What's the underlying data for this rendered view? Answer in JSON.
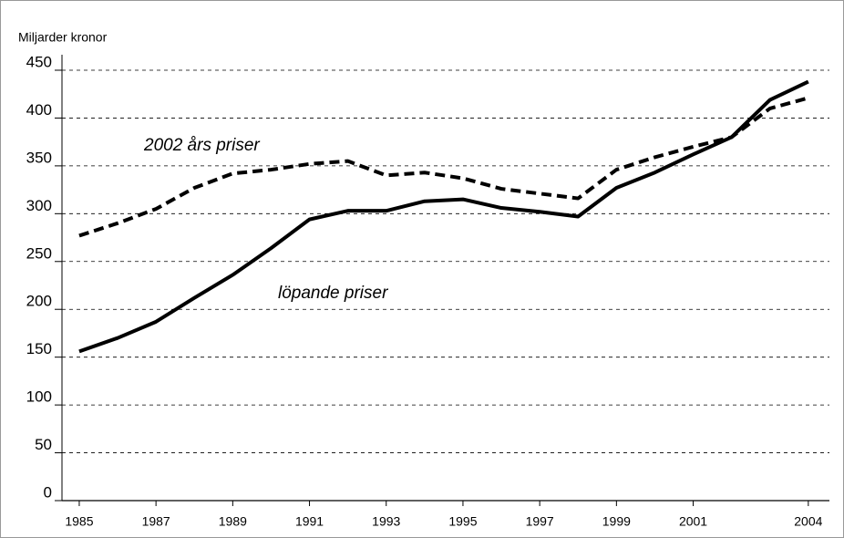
{
  "chart_data": {
    "type": "line",
    "ylabel": "Miljarder kronor",
    "x": [
      1985,
      1986,
      1987,
      1988,
      1989,
      1990,
      1991,
      1992,
      1993,
      1994,
      1995,
      1996,
      1997,
      1998,
      1999,
      2000,
      2001,
      2002,
      2003,
      2004
    ],
    "series": [
      {
        "name": "löpande priser",
        "color": "#000000",
        "dash": false,
        "values": [
          156,
          170,
          187,
          212,
          236,
          264,
          294,
          303,
          303,
          313,
          315,
          306,
          302,
          297,
          327,
          343,
          362,
          380,
          419,
          438
        ]
      },
      {
        "name": "2002 års priser",
        "color": "#000000",
        "dash": true,
        "values": [
          277,
          290,
          305,
          327,
          342,
          346,
          352,
          355,
          340,
          343,
          337,
          326,
          321,
          316,
          346,
          359,
          370,
          380,
          410,
          421
        ]
      }
    ],
    "xlim": [
      1984.55,
      2004.55
    ],
    "xticks": [
      1985,
      1987,
      1989,
      1991,
      1993,
      1995,
      1997,
      1999,
      2001,
      2004
    ],
    "ylim": [
      0,
      450
    ],
    "yticks": [
      0,
      50,
      100,
      150,
      200,
      250,
      300,
      350,
      400,
      450
    ],
    "grid": true
  }
}
